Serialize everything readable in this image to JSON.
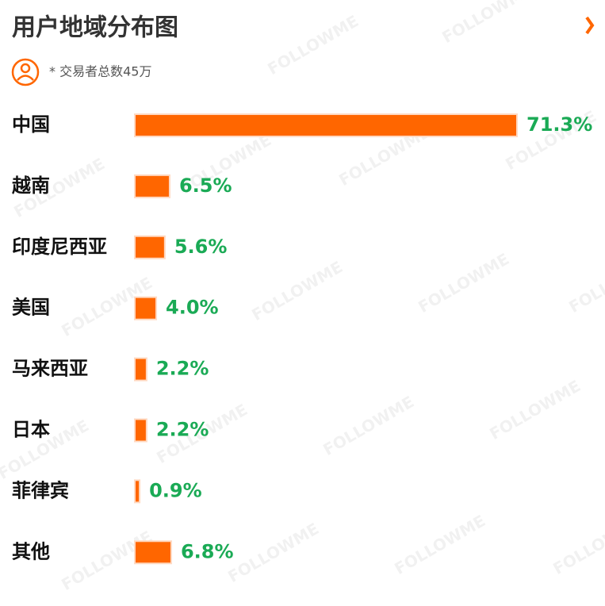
{
  "chart_data": {
    "type": "bar",
    "orientation": "horizontal",
    "title": "用户地域分布图",
    "subtitle": "* 交易者总数45万",
    "watermark": "FOLLOWME",
    "categories": [
      "中国",
      "越南",
      "印度尼西亚",
      "美国",
      "马来西亚",
      "日本",
      "菲律宾",
      "其他"
    ],
    "values": [
      71.3,
      6.5,
      5.6,
      4.0,
      2.2,
      2.2,
      0.9,
      6.8
    ],
    "value_labels": [
      "71.3%",
      "6.5%",
      "5.6%",
      "4.0%",
      "2.2%",
      "2.2%",
      "0.9%",
      "6.8%"
    ],
    "color": "#ff6600",
    "label_color": "#1aaa55"
  }
}
